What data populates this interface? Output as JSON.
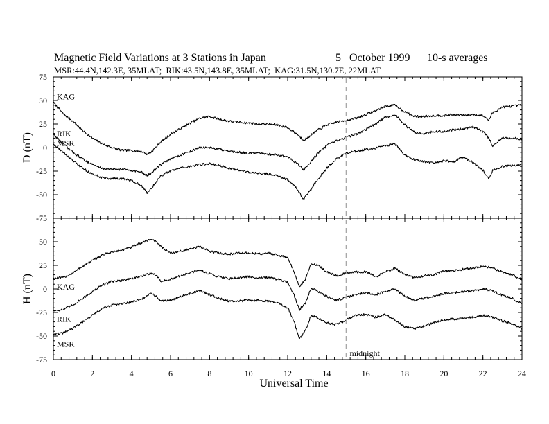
{
  "chart_data": {
    "type": "line",
    "title": "Magnetic Field Variations at 3 Stations in Japan",
    "date": "5   October 1999",
    "averaging": "10-s averages",
    "subtitle": "MSR:44.4N,142.3E, 35MLAT;  RIK:43.5N,143.8E, 35MLAT;  KAG:31.5N,130.7E, 22MLAT",
    "xlabel": "Universal Time",
    "xlim": [
      0,
      24
    ],
    "xticks": [
      "0",
      "2",
      "4",
      "6",
      "8",
      "10",
      "12",
      "14",
      "16",
      "18",
      "20",
      "22",
      "24"
    ],
    "x_minor_step": 0.4,
    "annotation": {
      "text": "midnight",
      "x": 15
    },
    "panels": [
      {
        "ylabel": "D (nT)",
        "ylim": [
          -75,
          75
        ],
        "yticks": [
          "75",
          "50",
          "25",
          "0",
          "-25",
          "-50",
          "-75"
        ],
        "series": [
          {
            "name": "KAG",
            "x": [
              0,
              0.5,
              1,
              1.5,
              2,
              2.5,
              3,
              3.5,
              4,
              4.5,
              4.8,
              5,
              5.5,
              6,
              6.5,
              7,
              7.5,
              8,
              8.5,
              9,
              9.5,
              10,
              10.5,
              11,
              11.5,
              12,
              12.5,
              12.8,
              13,
              13.5,
              14,
              14.5,
              15,
              15.5,
              16,
              16.5,
              17,
              17.5,
              18,
              18.5,
              19,
              19.5,
              20,
              20.5,
              21,
              21.5,
              22,
              22.3,
              22.5,
              23,
              23.5,
              24
            ],
            "values": [
              48,
              36,
              28,
              18,
              10,
              4,
              0,
              -3,
              -3,
              -4,
              -7,
              -5,
              6,
              14,
              20,
              26,
              31,
              33,
              30,
              28,
              27,
              26,
              25,
              25,
              24,
              21,
              14,
              8,
              10,
              18,
              24,
              27,
              29,
              31,
              35,
              39,
              44,
              45,
              38,
              33,
              33,
              34,
              34,
              35,
              34,
              35,
              34,
              29,
              37,
              43,
              44,
              45
            ]
          },
          {
            "name": "RIK",
            "x": [
              0,
              0.5,
              1,
              1.5,
              2,
              2.5,
              3,
              3.5,
              4,
              4.5,
              4.8,
              5,
              5.5,
              6,
              6.5,
              7,
              7.5,
              8,
              8.5,
              9,
              9.5,
              10,
              10.5,
              11,
              11.5,
              12,
              12.5,
              12.8,
              13,
              13.5,
              14,
              14.5,
              15,
              15.5,
              16,
              16.5,
              17,
              17.5,
              18,
              18.5,
              19,
              19.5,
              20,
              20.5,
              21,
              21.5,
              22,
              22.3,
              22.5,
              23,
              23.5,
              24
            ],
            "values": [
              14,
              4,
              -5,
              -12,
              -18,
              -22,
              -23,
              -23,
              -24,
              -26,
              -30,
              -27,
              -18,
              -12,
              -8,
              -4,
              0,
              0,
              -2,
              -4,
              -5,
              -6,
              -6,
              -7,
              -8,
              -10,
              -17,
              -24,
              -20,
              -7,
              2,
              7,
              11,
              14,
              19,
              25,
              32,
              35,
              24,
              16,
              15,
              17,
              17,
              19,
              20,
              22,
              17,
              10,
              2,
              10,
              10,
              9
            ]
          },
          {
            "name": "MSR",
            "x": [
              0,
              0.5,
              1,
              1.5,
              2,
              2.5,
              3,
              3.5,
              4,
              4.5,
              4.8,
              5,
              5.5,
              6,
              6.5,
              7,
              7.5,
              8,
              8.5,
              9,
              9.5,
              10,
              10.5,
              11,
              11.5,
              12,
              12.5,
              12.8,
              13,
              13.5,
              14,
              14.5,
              15,
              15.5,
              16,
              16.5,
              17,
              17.5,
              18,
              18.5,
              19,
              19.5,
              20,
              20.5,
              21,
              21.5,
              22,
              22.3,
              22.5,
              23,
              23.5,
              24
            ],
            "values": [
              4,
              -5,
              -14,
              -22,
              -28,
              -32,
              -33,
              -33,
              -35,
              -40,
              -48,
              -44,
              -30,
              -25,
              -22,
              -20,
              -18,
              -17,
              -19,
              -22,
              -24,
              -26,
              -27,
              -28,
              -30,
              -34,
              -44,
              -55,
              -50,
              -35,
              -22,
              -12,
              -6,
              -4,
              -2,
              -1,
              2,
              4,
              -8,
              -13,
              -15,
              -16,
              -14,
              -15,
              -10,
              -16,
              -24,
              -33,
              -24,
              -20,
              -19,
              -18
            ]
          }
        ]
      },
      {
        "ylabel": "H (nT)",
        "ylim": [
          -75,
          75
        ],
        "yticks": [
          "75",
          "50",
          "25",
          "0",
          "-25",
          "-50",
          "-75"
        ],
        "series": [
          {
            "name": "KAG",
            "x": [
              0,
              0.5,
              1,
              1.5,
              2,
              2.5,
              3,
              3.5,
              4,
              4.5,
              5,
              5.3,
              5.5,
              6,
              6.5,
              7,
              7.5,
              8,
              8.5,
              9,
              9.5,
              10,
              10.5,
              11,
              11.5,
              12,
              12.3,
              12.6,
              12.9,
              13.2,
              13.5,
              14,
              14.5,
              15,
              15.5,
              16,
              16.5,
              17,
              17.5,
              18,
              18.5,
              19,
              19.5,
              20,
              20.5,
              21,
              21.5,
              22,
              22.5,
              23,
              23.5,
              24
            ],
            "values": [
              11,
              12,
              17,
              24,
              30,
              36,
              39,
              41,
              44,
              49,
              53,
              50,
              45,
              38,
              40,
              42,
              45,
              40,
              38,
              37,
              38,
              38,
              37,
              38,
              36,
              33,
              20,
              2,
              10,
              26,
              26,
              18,
              14,
              17,
              18,
              18,
              13,
              18,
              22,
              15,
              12,
              14,
              15,
              19,
              19,
              21,
              22,
              24,
              22,
              18,
              15,
              10
            ]
          },
          {
            "name": "RIK",
            "x": [
              0,
              0.5,
              1,
              1.5,
              2,
              2.5,
              3,
              3.5,
              4,
              4.5,
              5,
              5.3,
              5.5,
              6,
              6.5,
              7,
              7.5,
              8,
              8.5,
              9,
              9.5,
              10,
              10.5,
              11,
              11.5,
              12,
              12.3,
              12.6,
              12.9,
              13.2,
              13.5,
              14,
              14.5,
              15,
              15.5,
              16,
              16.5,
              17,
              17.5,
              18,
              18.5,
              19,
              19.5,
              20,
              20.5,
              21,
              21.5,
              22,
              22.5,
              23,
              23.5,
              24
            ],
            "values": [
              -23,
              -22,
              -17,
              -10,
              -3,
              4,
              8,
              9,
              11,
              13,
              17,
              14,
              8,
              10,
              14,
              17,
              20,
              16,
              13,
              11,
              12,
              13,
              12,
              12,
              10,
              7,
              -5,
              -22,
              -15,
              1,
              -2,
              -8,
              -12,
              -9,
              -6,
              -4,
              -6,
              -3,
              0,
              -8,
              -12,
              -10,
              -8,
              -5,
              -4,
              -3,
              -2,
              0,
              -2,
              -7,
              -10,
              -16
            ]
          },
          {
            "name": "MSR",
            "x": [
              0,
              0.5,
              1,
              1.5,
              2,
              2.5,
              3,
              3.5,
              4,
              4.5,
              5,
              5.3,
              5.5,
              6,
              6.5,
              7,
              7.5,
              8,
              8.5,
              9,
              9.5,
              10,
              10.5,
              11,
              11.5,
              12,
              12.3,
              12.6,
              12.9,
              13.2,
              13.5,
              14,
              14.5,
              15,
              15.5,
              16,
              16.5,
              17,
              17.5,
              18,
              18.5,
              19,
              19.5,
              20,
              20.5,
              21,
              21.5,
              22,
              22.5,
              23,
              23.5,
              24
            ],
            "values": [
              -48,
              -47,
              -42,
              -35,
              -28,
              -21,
              -17,
              -16,
              -14,
              -11,
              -5,
              -8,
              -13,
              -12,
              -8,
              -5,
              -2,
              -6,
              -10,
              -13,
              -13,
              -12,
              -12,
              -13,
              -15,
              -20,
              -33,
              -53,
              -45,
              -28,
              -30,
              -36,
              -38,
              -33,
              -28,
              -27,
              -30,
              -27,
              -33,
              -40,
              -42,
              -39,
              -36,
              -33,
              -32,
              -31,
              -30,
              -28,
              -30,
              -34,
              -37,
              -42
            ]
          }
        ]
      }
    ]
  }
}
